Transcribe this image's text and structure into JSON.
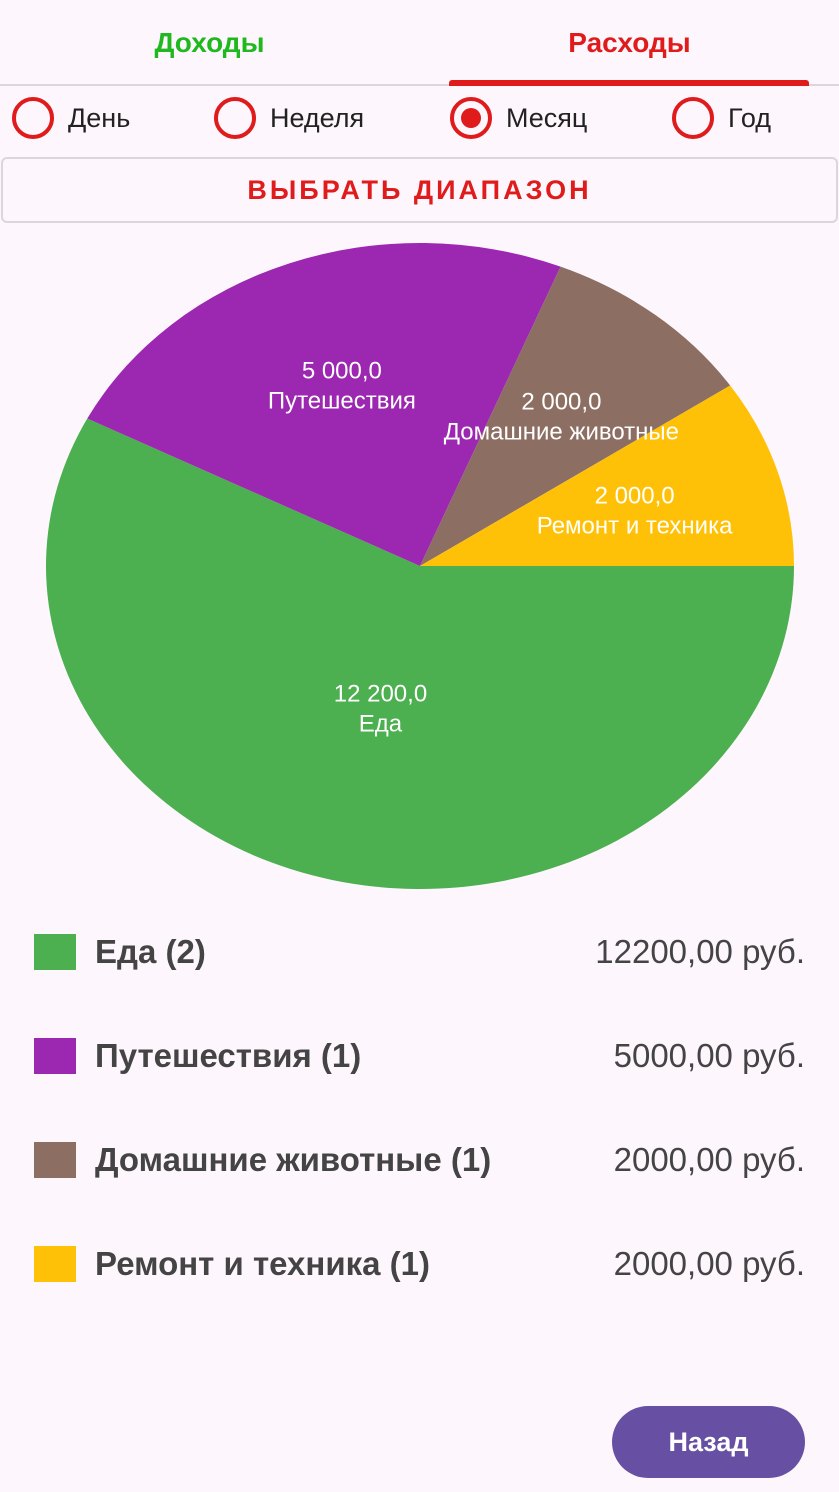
{
  "tabs": {
    "income": {
      "label": "Доходы",
      "color": "#1fb81f"
    },
    "expense": {
      "label": "Расходы",
      "color": "#e01b1b"
    },
    "active": "expense"
  },
  "period": {
    "options": [
      {
        "label": "День",
        "selected": false
      },
      {
        "label": "Неделя",
        "selected": false
      },
      {
        "label": "Месяц",
        "selected": true
      },
      {
        "label": "Год",
        "selected": false
      }
    ]
  },
  "range_button": {
    "label": "ВЫБРАТЬ ДИАПАЗОН",
    "color": "#e01b1b"
  },
  "chart_data": {
    "type": "pie",
    "slices": [
      {
        "label": "Еда",
        "value": 12200,
        "value_label": "12 200,0",
        "color": "#4caf50"
      },
      {
        "label": "Путешествия",
        "value": 5000,
        "value_label": "5 000,0",
        "color": "#9c27b0"
      },
      {
        "label": "Домашние животные",
        "value": 2000,
        "value_label": "2 000,0",
        "color": "#8d6e63"
      },
      {
        "label": "Ремонт и техника",
        "value": 2000,
        "value_label": "2 000,0",
        "color": "#ffc107"
      }
    ]
  },
  "legend": [
    {
      "name": "Еда (2)",
      "amount": "12200,00 руб.",
      "color": "#4caf50"
    },
    {
      "name": "Путешествия (1)",
      "amount": "5000,00 руб.",
      "color": "#9c27b0"
    },
    {
      "name": "Домашние животные (1)",
      "amount": "2000,00 руб.",
      "color": "#8d6e63"
    },
    {
      "name": "Ремонт и техника (1)",
      "amount": "2000,00 руб.",
      "color": "#ffc107"
    }
  ],
  "back_button": {
    "label": "Назад"
  }
}
